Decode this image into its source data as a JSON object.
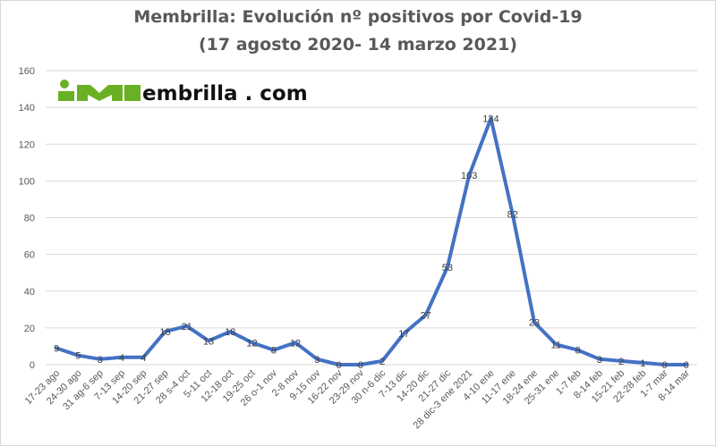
{
  "chart_data": {
    "type": "line",
    "title": "Membrilla: Evolución nº positivos por Covid-19",
    "subtitle": "(17 agosto 2020- 14 marzo 2021)",
    "categories": [
      "17-23 ago",
      "24-30 ago",
      "31 ag-6 sep",
      "7-13 sep",
      "14-20 sep",
      "21-27 sep",
      "28 s-4 oct",
      "5-11 oct",
      "12-18 oct",
      "19-25 oct",
      "26 o-1 nov",
      "2-8 nov",
      "9-15 nov",
      "16-22 nov",
      "23-29 nov",
      "30 n-6 dic",
      "7-13 dic",
      "14-20 dic",
      "21-27 dic",
      "28 dic-3 ene 2021",
      "4-10 ene",
      "11-17 ene",
      "18-24 ene",
      "25-31 ene",
      "1-7 feb",
      "8-14 feb",
      "15-21 feb",
      "22-28 feb",
      "1-7 mar",
      "8-14 mar"
    ],
    "values": [
      9,
      5,
      3,
      4,
      4,
      18,
      21,
      13,
      18,
      12,
      8,
      12,
      3,
      0,
      0,
      2,
      17,
      27,
      53,
      103,
      134,
      82,
      23,
      11,
      8,
      3,
      2,
      1,
      0,
      0
    ],
    "ylim": [
      0,
      160
    ],
    "yticks": [
      0,
      20,
      40,
      60,
      80,
      100,
      120,
      140,
      160
    ],
    "grid": true,
    "data_labels": true,
    "line_color": "#4472c4",
    "grid_color": "#d9d9d9"
  },
  "logo": {
    "text": "embrilla . com",
    "color_green": "#6ab024"
  }
}
